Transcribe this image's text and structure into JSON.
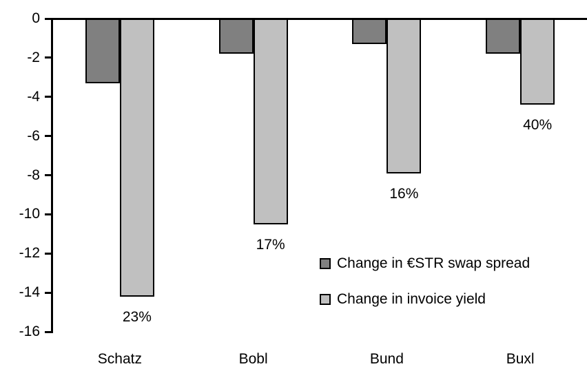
{
  "chart_data": {
    "type": "bar",
    "title": "",
    "categories": [
      "Schatz",
      "Bobl",
      "Bund",
      "Buxl"
    ],
    "series": [
      {
        "name": "Change in €STR swap spread",
        "color": "#808080",
        "values": [
          -3.3,
          -1.8,
          -1.3,
          -1.8
        ]
      },
      {
        "name": "Change in invoice yield",
        "color": "#c0c0c0",
        "values": [
          -14.2,
          -10.5,
          -7.9,
          -4.4
        ]
      }
    ],
    "bar_labels": {
      "attached_to_series": "Change in invoice yield",
      "values": [
        "23%",
        "17%",
        "16%",
        "40%"
      ]
    },
    "y_axis": {
      "min": -16,
      "max": 0,
      "tick_step": 2,
      "ticks": [
        0,
        -2,
        -4,
        -6,
        -8,
        -10,
        -12,
        -14,
        -16
      ]
    },
    "x_axis": {
      "labels": [
        "Schatz",
        "Bobl",
        "Bund",
        "Buxl"
      ]
    },
    "legend": {
      "position": "inside-right-center"
    },
    "grid": false,
    "styles": {
      "bar_border_color": "#000000",
      "axis_color": "#000000",
      "text_color": "#000000",
      "background": "#ffffff"
    }
  }
}
